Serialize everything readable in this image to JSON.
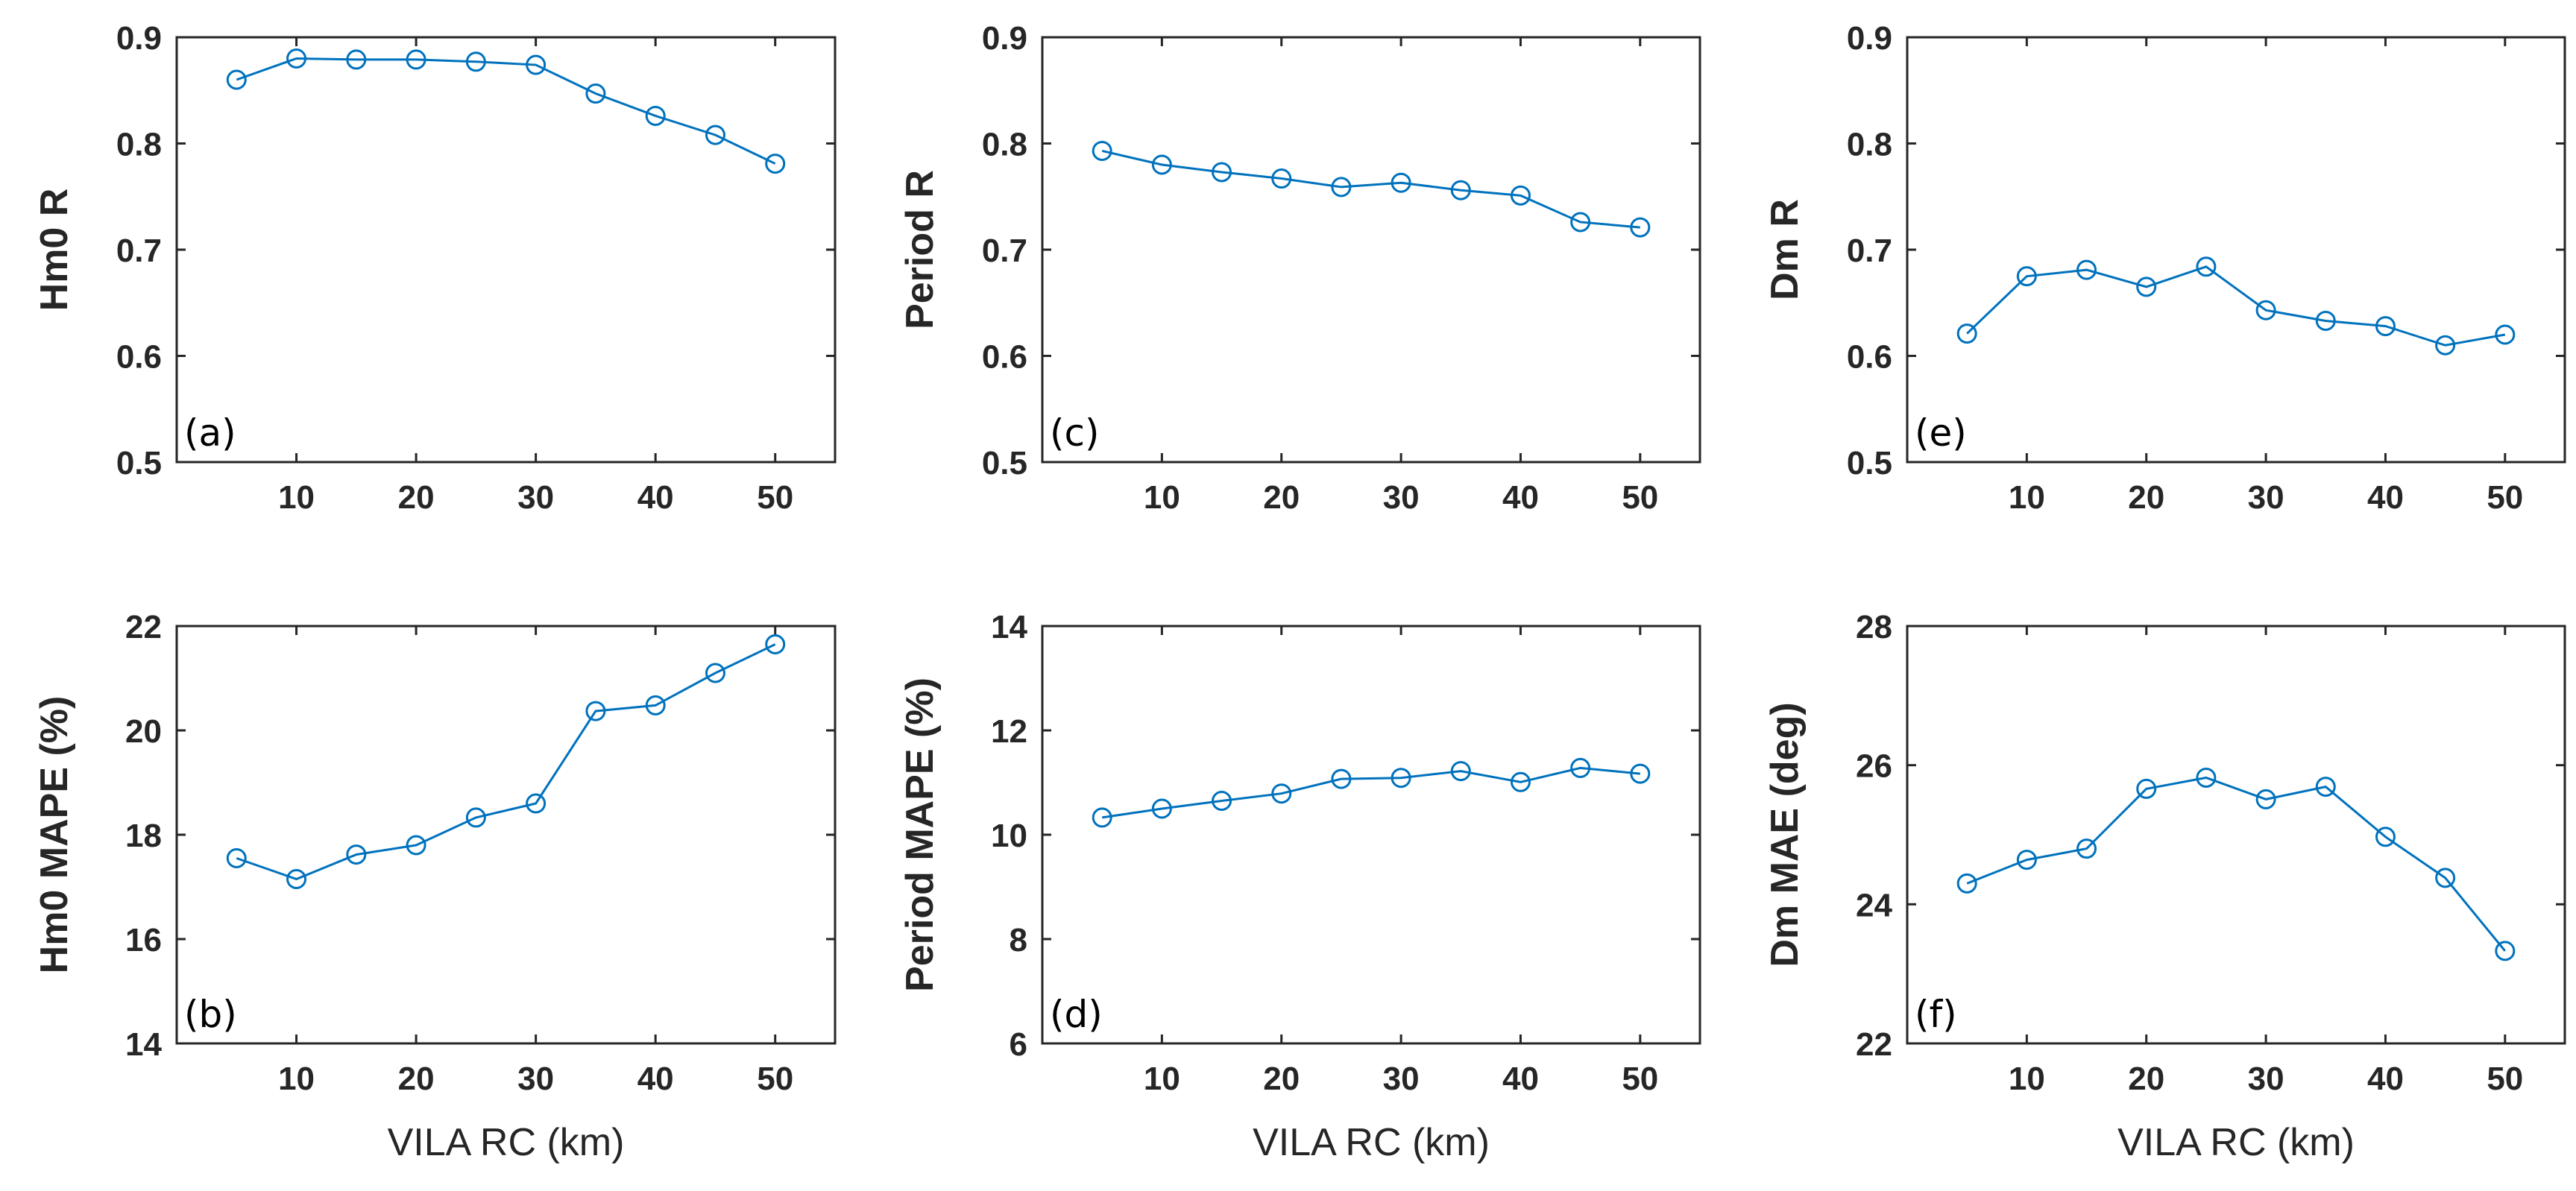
{
  "colors": {
    "series": "#0072BD",
    "axis": "#262626"
  },
  "chart_data": [
    {
      "id": "a",
      "type": "line",
      "panel_label": "(a)",
      "ylabel": "Hm0 R",
      "xlabel": "",
      "x": [
        5,
        10,
        15,
        20,
        25,
        30,
        35,
        40,
        45,
        50
      ],
      "values": [
        0.86,
        0.88,
        0.879,
        0.879,
        0.877,
        0.874,
        0.847,
        0.826,
        0.808,
        0.781
      ],
      "xlim": [
        0,
        55
      ],
      "ylim": [
        0.5,
        0.9
      ],
      "xticks": [
        10,
        20,
        30,
        40,
        50
      ],
      "xtick_labels": [
        "10",
        "20",
        "30",
        "40",
        "50"
      ],
      "yticks": [
        0.5,
        0.6,
        0.7,
        0.8,
        0.9
      ],
      "ytick_labels": [
        "0.5",
        "0.6",
        "0.7",
        "0.8",
        "0.9"
      ],
      "grid": false
    },
    {
      "id": "b",
      "type": "line",
      "panel_label": "(b)",
      "ylabel": "Hm0 MAPE (%)",
      "xlabel": "VILA RC (km)",
      "x": [
        5,
        10,
        15,
        20,
        25,
        30,
        35,
        40,
        45,
        50
      ],
      "values": [
        17.55,
        17.15,
        17.62,
        17.8,
        18.33,
        18.6,
        20.37,
        20.48,
        21.1,
        21.65
      ],
      "xlim": [
        0,
        55
      ],
      "ylim": [
        14,
        22
      ],
      "xticks": [
        10,
        20,
        30,
        40,
        50
      ],
      "xtick_labels": [
        "10",
        "20",
        "30",
        "40",
        "50"
      ],
      "yticks": [
        14,
        16,
        18,
        20,
        22
      ],
      "ytick_labels": [
        "14",
        "16",
        "18",
        "20",
        "22"
      ],
      "grid": false
    },
    {
      "id": "c",
      "type": "line",
      "panel_label": "(c)",
      "ylabel": "Period R",
      "xlabel": "",
      "x": [
        5,
        10,
        15,
        20,
        25,
        30,
        35,
        40,
        45,
        50
      ],
      "values": [
        0.793,
        0.78,
        0.773,
        0.767,
        0.759,
        0.763,
        0.756,
        0.751,
        0.726,
        0.721
      ],
      "xlim": [
        0,
        55
      ],
      "ylim": [
        0.5,
        0.9
      ],
      "xticks": [
        10,
        20,
        30,
        40,
        50
      ],
      "xtick_labels": [
        "10",
        "20",
        "30",
        "40",
        "50"
      ],
      "yticks": [
        0.5,
        0.6,
        0.7,
        0.8,
        0.9
      ],
      "ytick_labels": [
        "0.5",
        "0.6",
        "0.7",
        "0.8",
        "0.9"
      ],
      "grid": false
    },
    {
      "id": "d",
      "type": "line",
      "panel_label": "(d)",
      "ylabel": "Period MAPE (%)",
      "xlabel": "VILA RC (km)",
      "x": [
        5,
        10,
        15,
        20,
        25,
        30,
        35,
        40,
        45,
        50
      ],
      "values": [
        10.33,
        10.5,
        10.65,
        10.79,
        11.07,
        11.09,
        11.22,
        11.01,
        11.28,
        11.17
      ],
      "xlim": [
        0,
        55
      ],
      "ylim": [
        6,
        14
      ],
      "xticks": [
        10,
        20,
        30,
        40,
        50
      ],
      "xtick_labels": [
        "10",
        "20",
        "30",
        "40",
        "50"
      ],
      "yticks": [
        6,
        8,
        10,
        12,
        14
      ],
      "ytick_labels": [
        "6",
        "8",
        "10",
        "12",
        "14"
      ],
      "grid": false
    },
    {
      "id": "e",
      "type": "line",
      "panel_label": "(e)",
      "ylabel": "Dm R",
      "xlabel": "",
      "x": [
        5,
        10,
        15,
        20,
        25,
        30,
        35,
        40,
        45,
        50
      ],
      "values": [
        0.621,
        0.675,
        0.681,
        0.665,
        0.684,
        0.643,
        0.633,
        0.628,
        0.61,
        0.62
      ],
      "xlim": [
        0,
        55
      ],
      "ylim": [
        0.5,
        0.9
      ],
      "xticks": [
        10,
        20,
        30,
        40,
        50
      ],
      "xtick_labels": [
        "10",
        "20",
        "30",
        "40",
        "50"
      ],
      "yticks": [
        0.5,
        0.6,
        0.7,
        0.8,
        0.9
      ],
      "ytick_labels": [
        "0.5",
        "0.6",
        "0.7",
        "0.8",
        "0.9"
      ],
      "grid": false
    },
    {
      "id": "f",
      "type": "line",
      "panel_label": "(f)",
      "ylabel": "Dm MAE (deg)",
      "xlabel": "VILA RC (km)",
      "x": [
        5,
        10,
        15,
        20,
        25,
        30,
        35,
        40,
        45,
        50
      ],
      "values": [
        24.3,
        24.64,
        24.8,
        25.66,
        25.82,
        25.51,
        25.69,
        24.97,
        24.38,
        23.33
      ],
      "xlim": [
        0,
        55
      ],
      "ylim": [
        22,
        28
      ],
      "xticks": [
        10,
        20,
        30,
        40,
        50
      ],
      "xtick_labels": [
        "10",
        "20",
        "30",
        "40",
        "50"
      ],
      "yticks": [
        22,
        24,
        26,
        28
      ],
      "ytick_labels": [
        "22",
        "24",
        "26",
        "28"
      ],
      "grid": false
    }
  ]
}
